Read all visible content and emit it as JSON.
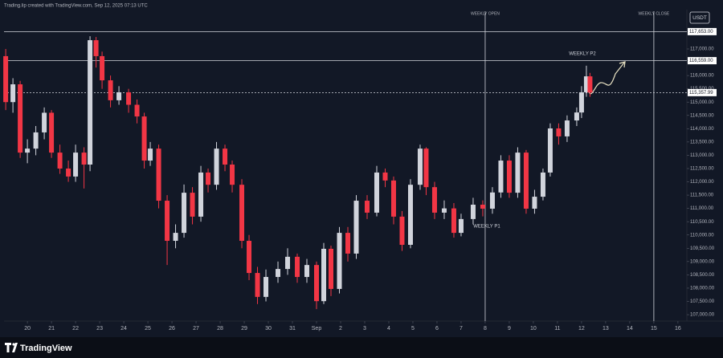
{
  "header": "Trading.lip created with TradingView.com, Sep 12, 2025 07:13 UTC",
  "brand": "TradingView",
  "chart_data": {
    "type": "candlestick",
    "currency": "USDT",
    "up_color": "#d1d4dc",
    "down_color": "#f23645",
    "xlim": [
      -0.97,
      27.37
    ],
    "xticks": [
      {
        "value": 0,
        "label": "20"
      },
      {
        "value": 1,
        "label": "21"
      },
      {
        "value": 2,
        "label": "22"
      },
      {
        "value": 3,
        "label": "23"
      },
      {
        "value": 4,
        "label": "24"
      },
      {
        "value": 5,
        "label": "25"
      },
      {
        "value": 6,
        "label": "26"
      },
      {
        "value": 7,
        "label": "27"
      },
      {
        "value": 8,
        "label": "28"
      },
      {
        "value": 9,
        "label": "29"
      },
      {
        "value": 10,
        "label": "30"
      },
      {
        "value": 11,
        "label": "31"
      },
      {
        "value": 12,
        "label": "Sep"
      },
      {
        "value": 13,
        "label": "2"
      },
      {
        "value": 14,
        "label": "3"
      },
      {
        "value": 15,
        "label": "4"
      },
      {
        "value": 16,
        "label": "5"
      },
      {
        "value": 17,
        "label": "6"
      },
      {
        "value": 18,
        "label": "7"
      },
      {
        "value": 19,
        "label": "8"
      },
      {
        "value": 20,
        "label": "9"
      },
      {
        "value": 21,
        "label": "10"
      },
      {
        "value": 22,
        "label": "11"
      },
      {
        "value": 23,
        "label": "12"
      },
      {
        "value": 24,
        "label": "13"
      },
      {
        "value": 25,
        "label": "14"
      },
      {
        "value": 26,
        "label": "15"
      },
      {
        "value": 27,
        "label": "16"
      }
    ],
    "ylim": [
      106760,
      118480
    ],
    "yticks": [
      {
        "value": 107000,
        "label": "107,000.00"
      },
      {
        "value": 107500,
        "label": "107,500.00"
      },
      {
        "value": 108000,
        "label": "108,000.00"
      },
      {
        "value": 108500,
        "label": "108,500.00"
      },
      {
        "value": 109000,
        "label": "109,000.00"
      },
      {
        "value": 109500,
        "label": "109,500.00"
      },
      {
        "value": 110000,
        "label": "110,000.00"
      },
      {
        "value": 110500,
        "label": "110,500.00"
      },
      {
        "value": 111000,
        "label": "111,000.00"
      },
      {
        "value": 111500,
        "label": "111,500.00"
      },
      {
        "value": 112000,
        "label": "112,000.00"
      },
      {
        "value": 112500,
        "label": "112,500.00"
      },
      {
        "value": 113000,
        "label": "113,000.00"
      },
      {
        "value": 113500,
        "label": "113,500.00"
      },
      {
        "value": 114000,
        "label": "114,000.00"
      },
      {
        "value": 114500,
        "label": "114,500.00"
      },
      {
        "value": 115000,
        "label": "115,000.00"
      },
      {
        "value": 115500,
        "label": "115,500.00"
      },
      {
        "value": 116000,
        "label": "116,000.00"
      },
      {
        "value": 116500,
        "label": "116,500.00"
      },
      {
        "value": 117000,
        "label": "117,000.00"
      }
    ],
    "price_lines": [
      {
        "value": 117653,
        "label": "117,653.00",
        "style": "solid"
      },
      {
        "value": 116559,
        "label": "116,559.00",
        "style": "solid"
      },
      {
        "value": 115357.99,
        "label": "115,357.99",
        "style": "dotted"
      }
    ],
    "vertical_lines": [
      {
        "x": 19,
        "label": "WEEKLY OPEN"
      },
      {
        "x": 26,
        "label": "WEEKLY CLOSE"
      }
    ],
    "annotations": [
      "WEEKLY P1",
      "WEEKLY P2"
    ],
    "x": [
      -0.9,
      -0.6,
      -0.3,
      0.0,
      0.35,
      0.7,
      1.0,
      1.35,
      1.7,
      2.0,
      2.35,
      2.6,
      2.85,
      3.1,
      3.45,
      3.8,
      4.2,
      4.55,
      4.85,
      5.1,
      5.45,
      5.8,
      6.15,
      6.5,
      6.85,
      7.2,
      7.5,
      7.85,
      8.2,
      8.5,
      8.9,
      9.2,
      9.55,
      9.9,
      10.4,
      10.8,
      11.2,
      11.6,
      12.0,
      12.3,
      12.6,
      12.95,
      13.3,
      13.65,
      14.1,
      14.5,
      14.85,
      15.2,
      15.55,
      15.9,
      16.3,
      16.55,
      16.9,
      17.3,
      17.7,
      18.0,
      18.5,
      18.9,
      19.3,
      19.65,
      20.0,
      20.35,
      20.7,
      21.05,
      21.4,
      21.7,
      22.05,
      22.4,
      22.8,
      23.0,
      23.2,
      23.35
    ],
    "open": [
      116730,
      115000,
      115670,
      113100,
      113250,
      113860,
      114600,
      113100,
      112500,
      112200,
      113100,
      112650,
      117330,
      116730,
      115820,
      115070,
      115370,
      114900,
      114460,
      112800,
      113250,
      111290,
      109780,
      110080,
      111590,
      110690,
      112350,
      111890,
      113250,
      112650,
      111890,
      109780,
      108570,
      107670,
      108420,
      108720,
      109180,
      108420,
      108870,
      107510,
      109480,
      107970,
      110080,
      109300,
      111290,
      110840,
      112350,
      112050,
      110690,
      109630,
      111890,
      113250,
      111800,
      110840,
      111000,
      110080,
      110600,
      111140,
      110990,
      111600,
      112800,
      111590,
      113100,
      110990,
      111440,
      112350,
      114010,
      113710,
      114310,
      114610,
      115370,
      115970
    ],
    "high": [
      117000,
      115900,
      115800,
      113600,
      114100,
      114800,
      114700,
      113400,
      112800,
      113400,
      113300,
      117480,
      117450,
      116900,
      116000,
      115600,
      115500,
      115100,
      114600,
      113500,
      113400,
      111500,
      110400,
      111900,
      111800,
      112600,
      112500,
      113500,
      113400,
      112800,
      112100,
      110000,
      108800,
      108700,
      109000,
      109500,
      109300,
      109100,
      109000,
      109700,
      109600,
      110300,
      110300,
      111500,
      111500,
      112600,
      112500,
      112200,
      110900,
      112100,
      113400,
      113300,
      112000,
      111300,
      111200,
      110800,
      111400,
      111300,
      111800,
      113000,
      113000,
      113300,
      113200,
      111700,
      112500,
      114200,
      114200,
      114500,
      114800,
      115600,
      116370,
      116100
    ],
    "low": [
      114700,
      114600,
      112900,
      112700,
      113000,
      113600,
      112900,
      112300,
      112000,
      112000,
      111750,
      112400,
      116300,
      115500,
      114800,
      114900,
      114600,
      114200,
      112500,
      112600,
      111000,
      108870,
      109500,
      109900,
      110400,
      110500,
      111600,
      111700,
      112400,
      111600,
      109500,
      108300,
      107400,
      107500,
      108200,
      108500,
      108200,
      108200,
      107210,
      107400,
      107700,
      107800,
      109000,
      109100,
      110600,
      110700,
      111800,
      110400,
      109400,
      109500,
      111700,
      111500,
      110600,
      110600,
      109900,
      109950,
      110400,
      110700,
      110800,
      111400,
      111400,
      111400,
      110800,
      110800,
      111300,
      112200,
      113400,
      113500,
      114100,
      114400,
      115200,
      115200
    ],
    "close": [
      115000,
      115670,
      113100,
      113250,
      113860,
      114600,
      113100,
      112500,
      112200,
      113100,
      112650,
      117330,
      116730,
      115820,
      115070,
      115370,
      114900,
      114460,
      112800,
      113250,
      111290,
      109780,
      110080,
      111590,
      110690,
      112350,
      111890,
      113250,
      112650,
      111890,
      109780,
      108570,
      107670,
      108420,
      108720,
      109180,
      108420,
      108870,
      107510,
      109480,
      107970,
      110080,
      109300,
      111290,
      110840,
      112350,
      112050,
      110690,
      109630,
      111890,
      113250,
      111800,
      110840,
      111000,
      110080,
      110600,
      111140,
      110990,
      111600,
      112800,
      111590,
      113100,
      110990,
      111440,
      112350,
      114010,
      113710,
      114310,
      114610,
      115370,
      115970,
      115360
    ]
  }
}
